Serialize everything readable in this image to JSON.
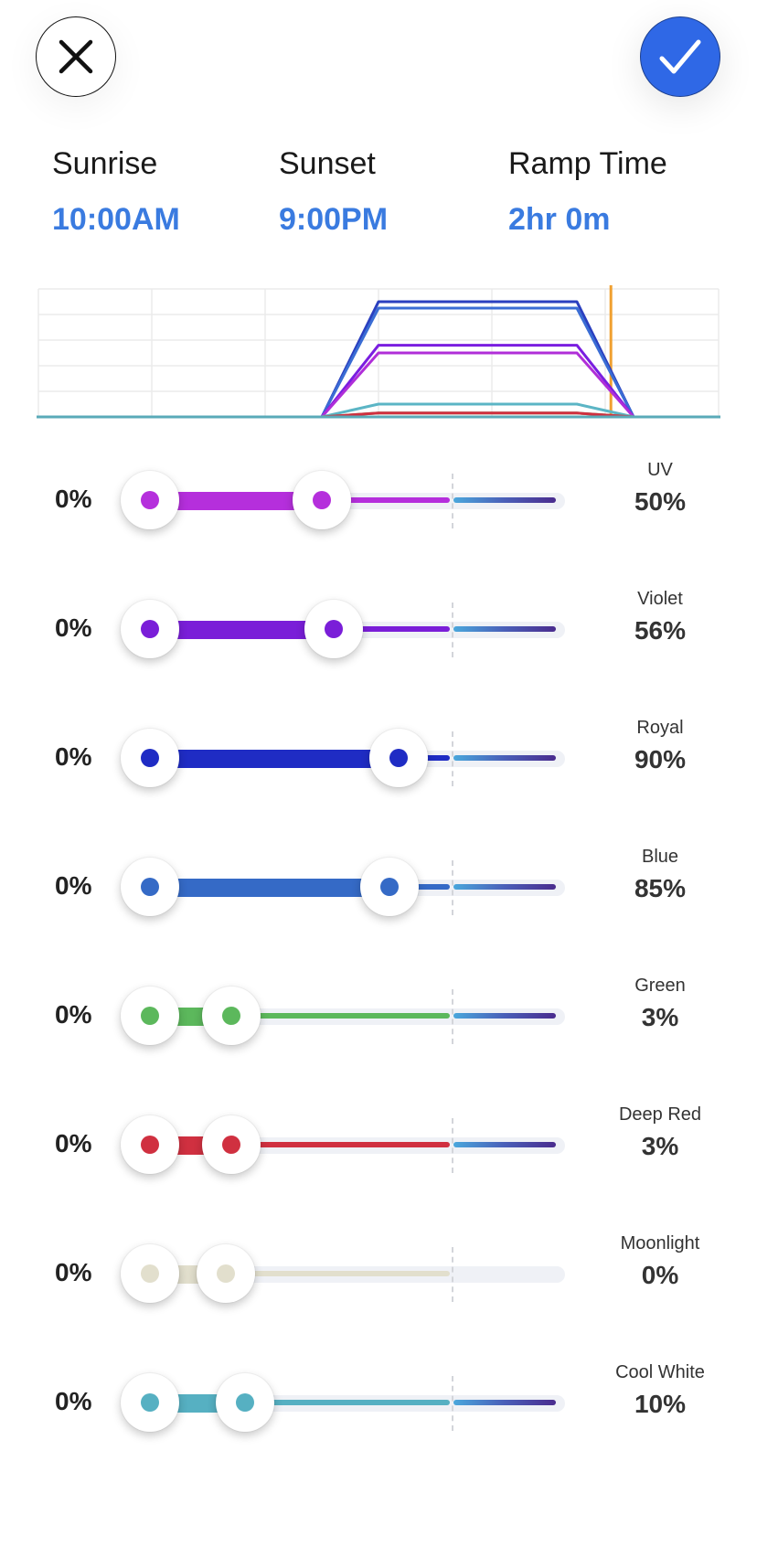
{
  "header": {
    "close_icon": "close-icon",
    "confirm_icon": "checkmark-icon",
    "accent": "#2f68e6"
  },
  "schedule": {
    "sunrise": {
      "label": "Sunrise",
      "value": "10:00AM"
    },
    "sunset": {
      "label": "Sunset",
      "value": "9:00PM"
    },
    "ramp": {
      "label": "Ramp Time",
      "value": "2hr 0m"
    }
  },
  "chart_data": {
    "type": "line",
    "x_range": [
      0,
      6
    ],
    "y_range": [
      0,
      100
    ],
    "grid": true,
    "current_time_marker": 5.05,
    "profile_x": [
      0,
      2.5,
      3.0,
      4.75,
      5.25,
      6
    ],
    "series": [
      {
        "color": "#2a3fbf",
        "values": [
          0,
          0,
          90,
          90,
          0,
          0
        ]
      },
      {
        "color": "#3a6dd4",
        "values": [
          0,
          0,
          85,
          85,
          0,
          0
        ]
      },
      {
        "color": "#7a1ee0",
        "values": [
          0,
          0,
          56,
          56,
          0,
          0
        ]
      },
      {
        "color": "#b02ed8",
        "values": [
          0,
          0,
          50,
          50,
          0,
          0
        ]
      },
      {
        "color": "#5bb5c5",
        "values": [
          0,
          0,
          10,
          10,
          0,
          0
        ]
      },
      {
        "color": "#5cb85c",
        "values": [
          0,
          0,
          3,
          3,
          0,
          0
        ]
      },
      {
        "color": "#d03040",
        "values": [
          0,
          0,
          3,
          3,
          0,
          0
        ]
      }
    ]
  },
  "channels": [
    {
      "name": "UV",
      "min_label": "0%",
      "value_label": "50%",
      "value": 50,
      "color": "#b52fdc"
    },
    {
      "name": "Violet",
      "min_label": "0%",
      "value_label": "56%",
      "value": 56,
      "color": "#7a1ed8"
    },
    {
      "name": "Royal",
      "min_label": "0%",
      "value_label": "90%",
      "value": 90,
      "color": "#1f2cc4"
    },
    {
      "name": "Blue",
      "min_label": "0%",
      "value_label": "85%",
      "value": 85,
      "color": "#356ac6"
    },
    {
      "name": "Green",
      "min_label": "0%",
      "value_label": "3%",
      "value": 3,
      "color": "#5cb85c"
    },
    {
      "name": "Deep Red",
      "min_label": "0%",
      "value_label": "3%",
      "value": 3,
      "color": "#d03040"
    },
    {
      "name": "Moonlight",
      "min_label": "0%",
      "value_label": "0%",
      "value": 0,
      "color": "#e2dfcd"
    },
    {
      "name": "Cool White",
      "min_label": "0%",
      "value_label": "10%",
      "value": 10,
      "color": "#56b0c2"
    }
  ]
}
